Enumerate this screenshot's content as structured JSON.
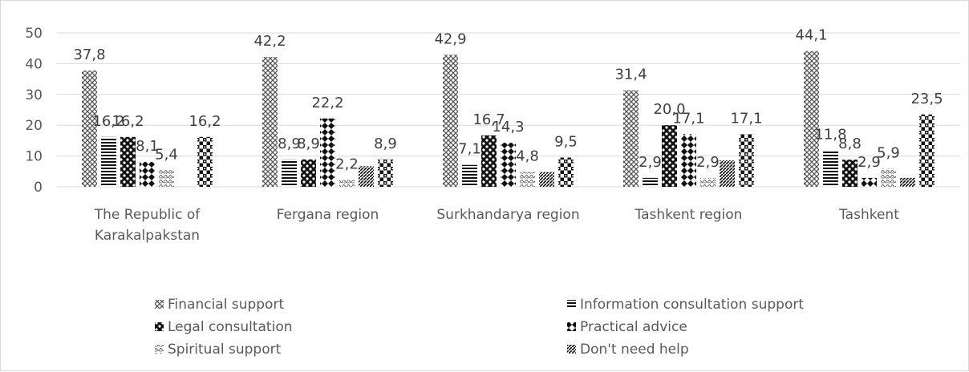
{
  "chart_data": {
    "type": "bar",
    "title": "",
    "xlabel": "",
    "ylabel": "",
    "ylim": [
      0,
      50
    ],
    "yticks": [
      "0",
      "10",
      "20",
      "30",
      "40",
      "50"
    ],
    "grid": true,
    "legend_position": "bottom",
    "categories": [
      [
        "The Republic of",
        "Karakalpakstan"
      ],
      [
        "Fergana region"
      ],
      [
        "Surkhandarya region"
      ],
      [
        "Tashkent region"
      ],
      [
        "Tashkent"
      ]
    ],
    "series": [
      {
        "name": "Financial support",
        "pattern": "cross",
        "values": [
          37.8,
          42.2,
          42.9,
          31.4,
          44.1
        ],
        "labels": [
          "37,8",
          "42,2",
          "42,9",
          "31,4",
          "44,1"
        ]
      },
      {
        "name": "Information consultation support",
        "pattern": "hlines",
        "values": [
          16.2,
          8.9,
          7.1,
          2.9,
          11.8
        ],
        "labels": [
          "16,2",
          "8,9",
          "7,1",
          "2,9",
          "11,8"
        ]
      },
      {
        "name": "Legal consultation",
        "pattern": "checker",
        "values": [
          16.2,
          8.9,
          16.7,
          20.0,
          8.8
        ],
        "labels": [
          "16,2",
          "8,9",
          "16,7",
          "20,0",
          "8,8"
        ]
      },
      {
        "name": "Practical advice",
        "pattern": "diamond",
        "values": [
          8.1,
          22.2,
          14.3,
          17.1,
          2.9
        ],
        "labels": [
          "8,1",
          "22,2",
          "14,3",
          "17,1",
          "2,9"
        ]
      },
      {
        "name": "Spiritual support",
        "pattern": "wave",
        "values": [
          5.4,
          2.2,
          4.8,
          2.9,
          5.9
        ],
        "labels": [
          "5,4",
          "2,2",
          "4,8",
          "2,9",
          "5,9"
        ]
      },
      {
        "name": "Don't need help",
        "pattern": "diag",
        "values": [
          0,
          6.7,
          4.8,
          8.6,
          2.9
        ],
        "labels": [
          "",
          "",
          "",
          "",
          ""
        ]
      },
      {
        "name": "",
        "pattern": "bigcheck",
        "values": [
          16.2,
          8.9,
          9.5,
          17.1,
          23.5
        ],
        "labels": [
          "16,2",
          "8,9",
          "9,5",
          "17,1",
          "23,5"
        ]
      }
    ],
    "legend": [
      {
        "name": "Financial support",
        "pattern": "cross"
      },
      {
        "name": "Information consultation support",
        "pattern": "hlines"
      },
      {
        "name": "Legal consultation",
        "pattern": "checker"
      },
      {
        "name": "Practical advice",
        "pattern": "diamond"
      },
      {
        "name": "Spiritual support",
        "pattern": "wave"
      },
      {
        "name": "Don't need help",
        "pattern": "diag"
      }
    ]
  }
}
